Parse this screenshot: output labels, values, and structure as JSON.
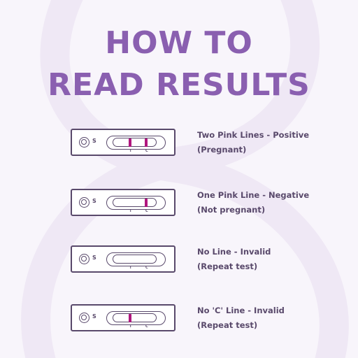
{
  "colors": {
    "background": "#f8f5fb",
    "title": "#8a5fb0",
    "outline": "#59496b",
    "band": "#b0167e",
    "caption": "#59496b"
  },
  "title": {
    "line1": "HOW TO",
    "line2": "READ RESULTS"
  },
  "strip_labels": {
    "sample": "S",
    "test": "T",
    "control": "C"
  },
  "results": [
    {
      "heading": "Two Pink Lines - Positive",
      "detail": "(Pregnant)",
      "t_line": true,
      "c_line": true
    },
    {
      "heading": "One Pink Line - Negative",
      "detail": "(Not pregnant)",
      "t_line": false,
      "c_line": true
    },
    {
      "heading": "No Line - Invalid",
      "detail": "(Repeat test)",
      "t_line": false,
      "c_line": false
    },
    {
      "heading": "No 'C' Line - Invalid",
      "detail": "(Repeat test)",
      "t_line": true,
      "c_line": false
    }
  ]
}
